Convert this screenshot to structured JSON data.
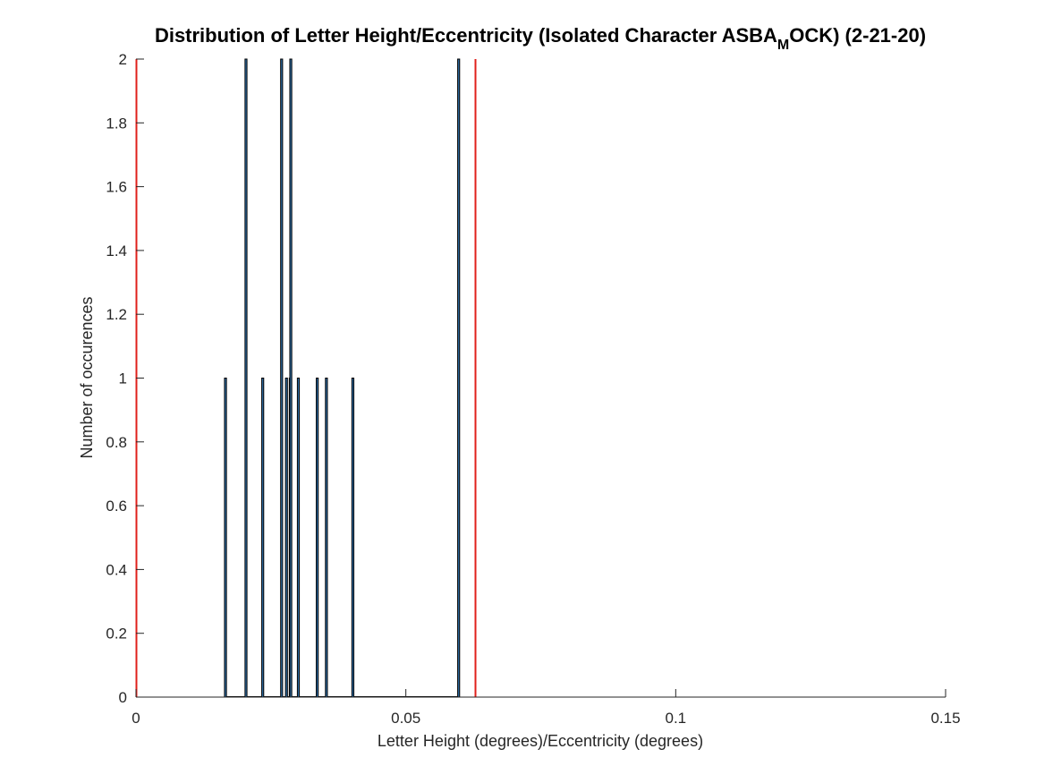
{
  "chart_data": {
    "type": "bar",
    "title": {
      "before": "Distribution of Letter Height/Eccentricity (Isolated Character ASBA",
      "subscript": "M",
      "after": "OCK) (2-21-20)"
    },
    "xlabel": "Letter Height (degrees)/Eccentricity (degrees)",
    "ylabel": "Number of occurences",
    "xlim": [
      0,
      0.15
    ],
    "ylim": [
      0,
      2
    ],
    "xticks": [
      {
        "value": 0,
        "label": "0"
      },
      {
        "value": 0.05,
        "label": "0.05"
      },
      {
        "value": 0.1,
        "label": "0.1"
      },
      {
        "value": 0.15,
        "label": "0.15"
      }
    ],
    "yticks": [
      {
        "value": 0,
        "label": "0"
      },
      {
        "value": 0.2,
        "label": "0.2"
      },
      {
        "value": 0.4,
        "label": "0.4"
      },
      {
        "value": 0.6,
        "label": "0.6"
      },
      {
        "value": 0.8,
        "label": "0.8"
      },
      {
        "value": 1,
        "label": "1"
      },
      {
        "value": 1.2,
        "label": "1.2"
      },
      {
        "value": 1.4,
        "label": "1.4"
      },
      {
        "value": 1.6,
        "label": "1.6"
      },
      {
        "value": 1.8,
        "label": "1.8"
      },
      {
        "value": 2,
        "label": "2"
      }
    ],
    "bin_width": 0.0003,
    "bars": [
      {
        "x": 0.0164,
        "count": 1
      },
      {
        "x": 0.0202,
        "count": 2
      },
      {
        "x": 0.0233,
        "count": 1
      },
      {
        "x": 0.0268,
        "count": 2
      },
      {
        "x": 0.0277,
        "count": 1
      },
      {
        "x": 0.0284,
        "count": 1
      },
      {
        "x": 0.0285,
        "count": 2
      },
      {
        "x": 0.0299,
        "count": 1
      },
      {
        "x": 0.0334,
        "count": 1
      },
      {
        "x": 0.0351,
        "count": 1
      },
      {
        "x": 0.04,
        "count": 1
      },
      {
        "x": 0.0596,
        "count": 2
      }
    ],
    "baseline_range": [
      0.0164,
      0.0599
    ],
    "reference_lines": [
      {
        "x": 0.0,
        "color": "#e0201b"
      },
      {
        "x": 0.0629,
        "color": "#e0201b"
      }
    ],
    "bar_color": "#2e6ea6",
    "bar_edge_color": "#000000",
    "grid": false,
    "legend": "none"
  }
}
